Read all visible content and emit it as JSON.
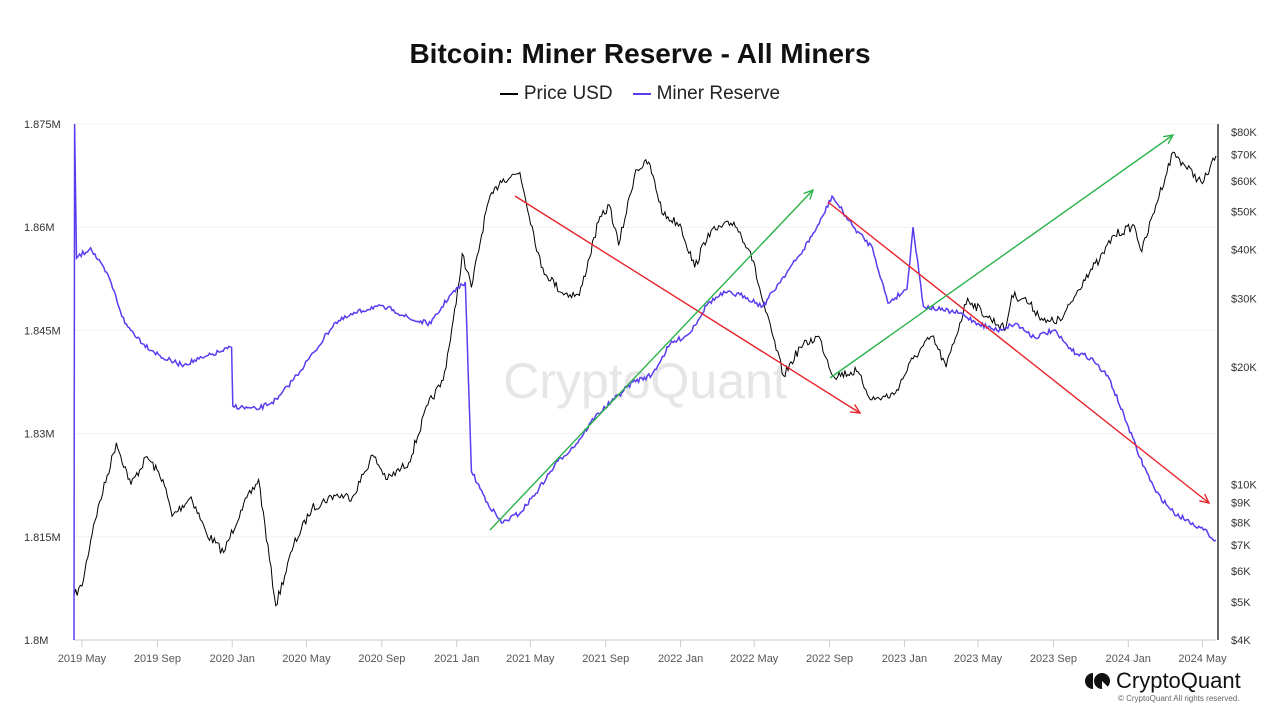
{
  "chart_data": {
    "type": "line",
    "title": "Bitcoin: Miner Reserve - All Miners",
    "legend_position": "top",
    "grid": true,
    "xlim": [
      "2019-04-18",
      "2024-05-23"
    ],
    "x_ticks": [
      "2019 May",
      "2019 Sep",
      "2020 Jan",
      "2020 May",
      "2020 Sep",
      "2021 Jan",
      "2021 May",
      "2021 Sep",
      "2022 Jan",
      "2022 May",
      "2022 Sep",
      "2023 Jan",
      "2023 May",
      "2023 Sep",
      "2024 Jan",
      "2024 May"
    ],
    "x_tick_dates": [
      "2019-05-01",
      "2019-09-01",
      "2020-01-01",
      "2020-05-01",
      "2020-09-01",
      "2021-01-01",
      "2021-05-01",
      "2021-09-01",
      "2022-01-01",
      "2022-05-01",
      "2022-09-01",
      "2023-01-01",
      "2023-05-01",
      "2023-09-01",
      "2024-01-01",
      "2024-05-01"
    ],
    "y_left": {
      "scale": "linear",
      "range": [
        1800000,
        1875000
      ],
      "ticks": [
        1800000,
        1815000,
        1830000,
        1845000,
        1860000,
        1875000
      ],
      "tick_labels": [
        "1.8M",
        "1.815M",
        "1.83M",
        "1.845M",
        "1.86M",
        "1.875M"
      ]
    },
    "y_right": {
      "scale": "log",
      "range": [
        4000,
        80000
      ],
      "ticks": [
        4000,
        5000,
        6000,
        7000,
        8000,
        9000,
        10000,
        20000,
        30000,
        40000,
        50000,
        60000,
        70000,
        80000
      ],
      "tick_labels": [
        "$4K",
        "$5K",
        "$6K",
        "$7K",
        "$8K",
        "$9K",
        "$10K",
        "$20K",
        "$30K",
        "$40K",
        "$50K",
        "$60K",
        "$70K",
        "$80K"
      ]
    },
    "series": [
      {
        "name": "Price USD",
        "axis": "right",
        "color": "#000000",
        "x": [
          "2019-04-18",
          "2019-05-01",
          "2019-05-20",
          "2019-06-26",
          "2019-07-20",
          "2019-08-15",
          "2019-09-10",
          "2019-09-25",
          "2019-10-26",
          "2019-11-20",
          "2019-12-18",
          "2020-01-15",
          "2020-02-13",
          "2020-03-12",
          "2020-04-10",
          "2020-05-10",
          "2020-06-15",
          "2020-07-15",
          "2020-08-17",
          "2020-09-10",
          "2020-10-15",
          "2020-11-15",
          "2020-12-10",
          "2020-12-31",
          "2021-01-10",
          "2021-01-25",
          "2021-02-20",
          "2021-03-13",
          "2021-04-14",
          "2021-05-19",
          "2021-06-22",
          "2021-07-20",
          "2021-08-20",
          "2021-09-07",
          "2021-09-22",
          "2021-10-20",
          "2021-11-10",
          "2021-12-04",
          "2021-12-31",
          "2022-01-24",
          "2022-02-15",
          "2022-03-29",
          "2022-04-25",
          "2022-05-15",
          "2022-06-18",
          "2022-07-15",
          "2022-08-14",
          "2022-09-07",
          "2022-10-15",
          "2022-11-09",
          "2022-12-15",
          "2023-01-15",
          "2023-02-15",
          "2023-03-10",
          "2023-04-14",
          "2023-05-15",
          "2023-06-15",
          "2023-06-25",
          "2023-07-15",
          "2023-08-20",
          "2023-09-15",
          "2023-10-25",
          "2023-11-15",
          "2023-12-08",
          "2024-01-11",
          "2024-01-23",
          "2024-02-15",
          "2024-03-14",
          "2024-04-01",
          "2024-05-01",
          "2024-05-23"
        ],
        "values": [
          5200,
          5500,
          7900,
          12800,
          10000,
          11800,
          10300,
          8300,
          9300,
          7500,
          6700,
          8600,
          10300,
          4900,
          7000,
          8700,
          9400,
          9300,
          11900,
          10300,
          11400,
          16000,
          18500,
          29000,
          39000,
          32000,
          52000,
          60000,
          63000,
          36000,
          31000,
          30500,
          47000,
          52000,
          41000,
          64000,
          67000,
          49000,
          46500,
          36000,
          44000,
          47000,
          39500,
          29500,
          19000,
          22500,
          24000,
          19000,
          19500,
          16500,
          17000,
          21000,
          24000,
          20000,
          30000,
          27000,
          25000,
          30500,
          30000,
          26000,
          26500,
          34500,
          37500,
          43500,
          46000,
          39500,
          52000,
          71000,
          66000,
          59000,
          69500
        ]
      },
      {
        "name": "Miner Reserve",
        "axis": "left",
        "color": "#5a3cf0",
        "x": [
          "2019-04-18",
          "2019-04-19",
          "2019-04-22",
          "2019-05-15",
          "2019-06-15",
          "2019-07-10",
          "2019-08-10",
          "2019-09-10",
          "2019-10-10",
          "2019-11-15",
          "2019-12-15",
          "2019-12-31",
          "2020-01-02",
          "2020-02-10",
          "2020-03-15",
          "2020-04-15",
          "2020-05-15",
          "2020-06-15",
          "2020-07-20",
          "2020-08-20",
          "2020-09-20",
          "2020-10-20",
          "2020-11-20",
          "2020-12-20",
          "2021-01-15",
          "2021-01-25",
          "2021-02-20",
          "2021-03-15",
          "2021-04-15",
          "2021-05-15",
          "2021-06-15",
          "2021-07-15",
          "2021-08-15",
          "2021-09-15",
          "2021-10-15",
          "2021-11-15",
          "2021-12-15",
          "2022-01-15",
          "2022-02-15",
          "2022-03-15",
          "2022-04-15",
          "2022-05-15",
          "2022-06-15",
          "2022-07-15",
          "2022-08-15",
          "2022-09-05",
          "2022-10-10",
          "2022-11-10",
          "2022-12-05",
          "2023-01-05",
          "2023-01-15",
          "2023-02-01",
          "2023-03-01",
          "2023-04-01",
          "2023-05-01",
          "2023-06-01",
          "2023-07-01",
          "2023-08-01",
          "2023-09-01",
          "2023-10-01",
          "2023-11-01",
          "2023-12-01",
          "2024-01-01",
          "2024-01-20",
          "2024-02-15",
          "2024-03-15",
          "2024-04-15",
          "2024-05-10",
          "2024-05-23"
        ],
        "values": [
          1800000,
          1875000,
          1855500,
          1857000,
          1852500,
          1846000,
          1843000,
          1841000,
          1840000,
          1841000,
          1842000,
          1842500,
          1834000,
          1833500,
          1835000,
          1838500,
          1842000,
          1846000,
          1847500,
          1848500,
          1848000,
          1846500,
          1846000,
          1850000,
          1852000,
          1824500,
          1820000,
          1817000,
          1818500,
          1822000,
          1826000,
          1828500,
          1832500,
          1835000,
          1837500,
          1838500,
          1843000,
          1844500,
          1849000,
          1850500,
          1850000,
          1848500,
          1852500,
          1856000,
          1860500,
          1864500,
          1860000,
          1857000,
          1849000,
          1851000,
          1860000,
          1848500,
          1848000,
          1847500,
          1846000,
          1845000,
          1846000,
          1844000,
          1845000,
          1842000,
          1841000,
          1838000,
          1831000,
          1826500,
          1821500,
          1818500,
          1817000,
          1815500,
          1814500
        ]
      }
    ],
    "annotations": [
      {
        "type": "arrow",
        "color": "#e8232a"
      },
      {
        "type": "arrow",
        "color": "#2ab34a"
      },
      {
        "type": "arrow",
        "color": "#e8232a"
      },
      {
        "type": "arrow",
        "color": "#2ab34a"
      }
    ],
    "watermark": "CryptoQuant"
  },
  "legend": {
    "price": "Price USD",
    "reserve": "Miner Reserve"
  },
  "branding": {
    "logo_text": "CryptoQuant",
    "copyright": "© CryptoQuant All rights reserved."
  }
}
